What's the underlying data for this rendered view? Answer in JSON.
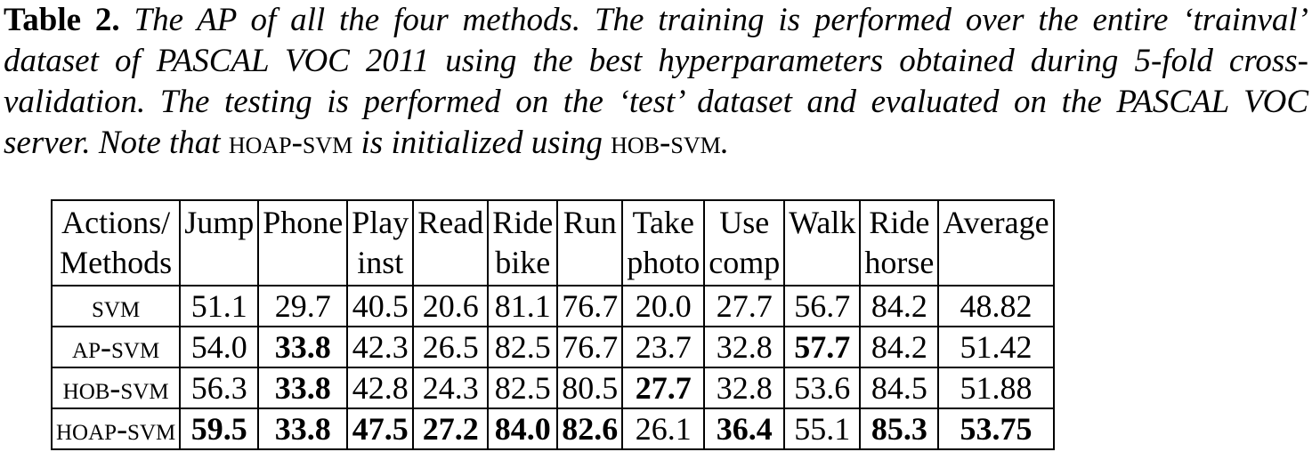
{
  "caption": {
    "label": "Table 2.",
    "text_part1": " The AP of all the four methods. The training is performed over the entire ‘trainval’ dataset of PASCAL VOC 2011 using the best hyperparameters obtained during 5-fold cross-validation. The testing is performed on the ‘test’ dataset and evaluated on the PASCAL VOC server. Note that ",
    "method_a": "hoap-svm",
    "text_part2": " is initialized using ",
    "method_b": "hob-svm",
    "text_part3": "."
  },
  "table": {
    "headers": [
      {
        "line1": "Actions/",
        "line2": "Methods"
      },
      {
        "line1": "Jump",
        "line2": ""
      },
      {
        "line1": "Phone",
        "line2": ""
      },
      {
        "line1": "Play",
        "line2": "inst"
      },
      {
        "line1": "Read",
        "line2": ""
      },
      {
        "line1": "Ride",
        "line2": "bike"
      },
      {
        "line1": "Run",
        "line2": ""
      },
      {
        "line1": "Take",
        "line2": "photo"
      },
      {
        "line1": "Use",
        "line2": "comp"
      },
      {
        "line1": "Walk",
        "line2": ""
      },
      {
        "line1": "Ride",
        "line2": "horse"
      },
      {
        "line1": "Average",
        "line2": ""
      }
    ],
    "rows": [
      {
        "method": "svm",
        "values": [
          "51.1",
          "29.7",
          "40.5",
          "20.6",
          "81.1",
          "76.7",
          "20.0",
          "27.7",
          "56.7",
          "84.2",
          "48.82"
        ],
        "bold": [
          false,
          false,
          false,
          false,
          false,
          false,
          false,
          false,
          false,
          false,
          false
        ]
      },
      {
        "method": "ap-svm",
        "values": [
          "54.0",
          "33.8",
          "42.3",
          "26.5",
          "82.5",
          "76.7",
          "23.7",
          "32.8",
          "57.7",
          "84.2",
          "51.42"
        ],
        "bold": [
          false,
          true,
          false,
          false,
          false,
          false,
          false,
          false,
          true,
          false,
          false
        ]
      },
      {
        "method": "hob-svm",
        "values": [
          "56.3",
          "33.8",
          "42.8",
          "24.3",
          "82.5",
          "80.5",
          "27.7",
          "32.8",
          "53.6",
          "84.5",
          "51.88"
        ],
        "bold": [
          false,
          true,
          false,
          false,
          false,
          false,
          true,
          false,
          false,
          false,
          false
        ]
      },
      {
        "method": "hoap-svm",
        "values": [
          "59.5",
          "33.8",
          "47.5",
          "27.2",
          "84.0",
          "82.6",
          "26.1",
          "36.4",
          "55.1",
          "85.3",
          "53.75"
        ],
        "bold": [
          true,
          true,
          true,
          true,
          true,
          true,
          false,
          true,
          false,
          true,
          true
        ]
      }
    ]
  }
}
